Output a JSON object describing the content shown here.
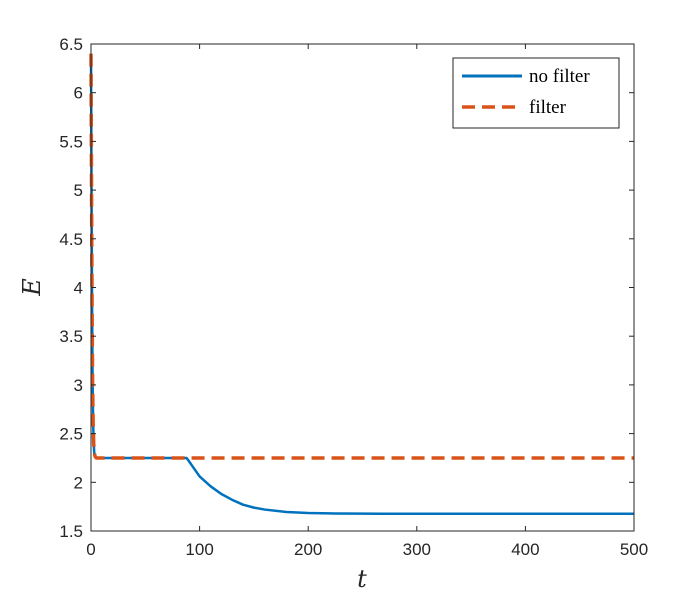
{
  "chart_data": {
    "type": "line",
    "title": "",
    "xlabel": "t",
    "ylabel": "E",
    "xlim": [
      0,
      500
    ],
    "ylim": [
      1.5,
      6.5
    ],
    "xticks": [
      0,
      100,
      200,
      300,
      400,
      500
    ],
    "yticks": [
      1.5,
      2,
      2.5,
      3,
      3.5,
      4,
      4.5,
      5,
      5.5,
      6,
      6.5
    ],
    "xtick_labels": [
      "0",
      "100",
      "200",
      "300",
      "400",
      "500"
    ],
    "ytick_labels": [
      "1.5",
      "2",
      "2.5",
      "3",
      "3.5",
      "4",
      "4.5",
      "5",
      "5.5",
      "6",
      "6.5"
    ],
    "grid": false,
    "legend_position": "top-right",
    "series": [
      {
        "name": "no filter",
        "color": "#0072BD",
        "style": "solid",
        "x": [
          0,
          0.5,
          1,
          1.5,
          2,
          2.5,
          3,
          4,
          5,
          10,
          20,
          40,
          60,
          80,
          88,
          90,
          95,
          100,
          110,
          120,
          130,
          140,
          150,
          160,
          180,
          200,
          225,
          250,
          300,
          350,
          400,
          450,
          500
        ],
        "y": [
          6.4,
          5.0,
          3.8,
          3.0,
          2.6,
          2.4,
          2.3,
          2.26,
          2.25,
          2.25,
          2.25,
          2.25,
          2.25,
          2.25,
          2.25,
          2.22,
          2.14,
          2.06,
          1.96,
          1.88,
          1.82,
          1.77,
          1.74,
          1.72,
          1.695,
          1.685,
          1.68,
          1.678,
          1.677,
          1.677,
          1.677,
          1.677,
          1.677
        ]
      },
      {
        "name": "filter",
        "color": "#D95319",
        "style": "dashed",
        "x": [
          0,
          0.5,
          1,
          1.5,
          2,
          2.5,
          3,
          4,
          5,
          10,
          100,
          200,
          300,
          400,
          500
        ],
        "y": [
          6.4,
          5.0,
          3.8,
          3.0,
          2.6,
          2.4,
          2.3,
          2.26,
          2.25,
          2.25,
          2.25,
          2.25,
          2.25,
          2.25,
          2.25
        ]
      }
    ]
  }
}
